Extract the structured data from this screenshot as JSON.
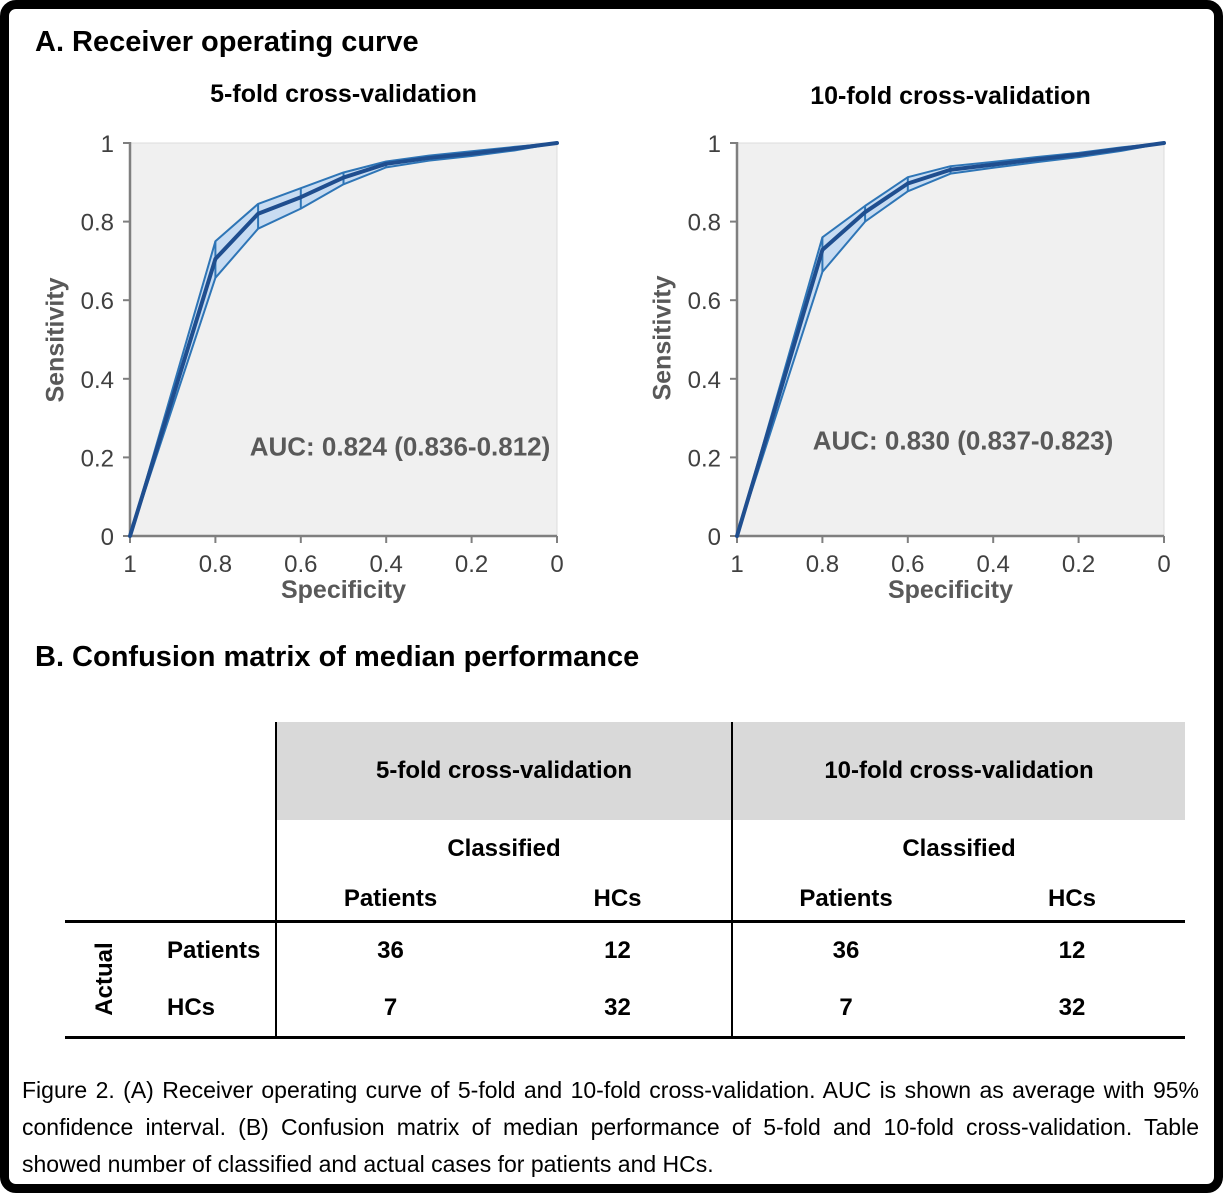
{
  "panels": {
    "a_label": "A. Receiver operating curve",
    "b_label": "B. Confusion matrix of median performance"
  },
  "chart_data": [
    {
      "type": "line",
      "title": "5-fold cross-validation",
      "xlabel": "Specificity",
      "ylabel": "Sensitivity",
      "annotation": "AUC: 0.824 (0.836-0.812)",
      "xlim": [
        1,
        0
      ],
      "ylim": [
        0,
        1
      ],
      "x_reversed": true,
      "grid": false,
      "x_ticks": [
        1,
        0.8,
        0.6,
        0.4,
        0.2,
        0
      ],
      "y_ticks": [
        0,
        0.2,
        0.4,
        0.6,
        0.8,
        1
      ],
      "x": [
        1,
        0.8,
        0.7,
        0.6,
        0.5,
        0.4,
        0.3,
        0.2,
        0.1,
        0
      ],
      "series": [
        {
          "name": "mean",
          "values": [
            0,
            0.705,
            0.82,
            0.862,
            0.912,
            0.947,
            0.962,
            0.973,
            0.986,
            1
          ]
        },
        {
          "name": "upper_ci",
          "values": [
            0,
            0.75,
            0.845,
            0.885,
            0.925,
            0.953,
            0.968,
            0.979,
            0.99,
            1
          ]
        },
        {
          "name": "lower_ci",
          "values": [
            0,
            0.657,
            0.782,
            0.833,
            0.895,
            0.938,
            0.955,
            0.967,
            0.981,
            1
          ]
        }
      ]
    },
    {
      "type": "line",
      "title": "10-fold cross-validation",
      "xlabel": "Specificity",
      "ylabel": "Sensitivity",
      "annotation": "AUC: 0.830 (0.837-0.823)",
      "xlim": [
        1,
        0
      ],
      "ylim": [
        0,
        1
      ],
      "x_reversed": true,
      "grid": false,
      "x_ticks": [
        1,
        0.8,
        0.6,
        0.4,
        0.2,
        0
      ],
      "y_ticks": [
        0,
        0.2,
        0.4,
        0.6,
        0.8,
        1
      ],
      "x": [
        1,
        0.8,
        0.7,
        0.6,
        0.5,
        0.4,
        0.3,
        0.2,
        0.1,
        0
      ],
      "series": [
        {
          "name": "mean",
          "values": [
            0,
            0.728,
            0.824,
            0.897,
            0.932,
            0.945,
            0.958,
            0.97,
            0.985,
            1
          ]
        },
        {
          "name": "upper_ci",
          "values": [
            0,
            0.76,
            0.84,
            0.913,
            0.941,
            0.952,
            0.964,
            0.975,
            0.989,
            1
          ]
        },
        {
          "name": "lower_ci",
          "values": [
            0,
            0.672,
            0.8,
            0.877,
            0.922,
            0.937,
            0.951,
            0.964,
            0.98,
            1
          ]
        }
      ]
    }
  ],
  "table": {
    "group_headers": [
      "5-fold cross-validation",
      "10-fold cross-validation"
    ],
    "sub_header": "Classified",
    "col_headers": [
      "Patients",
      "HCs",
      "Patients",
      "HCs"
    ],
    "row_axis_label": "Actual",
    "rows": [
      {
        "label": "Patients",
        "values": [
          36,
          12,
          36,
          12
        ]
      },
      {
        "label": "HCs",
        "values": [
          7,
          32,
          7,
          32
        ]
      }
    ]
  },
  "caption": "Figure 2. (A) Receiver operating curve of 5-fold and 10-fold cross-validation. AUC is shown as average with 95% confidence interval. (B) Confusion matrix of median performance of 5-fold and 10-fold cross-validation. Table showed number of classified and actual cases for patients and HCs.",
  "colors": {
    "band_fill": "#c8dcf2",
    "band_stroke": "#2e75b6",
    "mean_line": "#1f4e8f",
    "plot_bg": "#f0f0f0",
    "plot_border": "#dcdcdc",
    "axis": "#7f7f7f",
    "tick_label": "#404040",
    "axis_label": "#595959",
    "annotation": "#595959",
    "table_header_bg": "#d9d9d9",
    "figure_border": "#000000"
  }
}
